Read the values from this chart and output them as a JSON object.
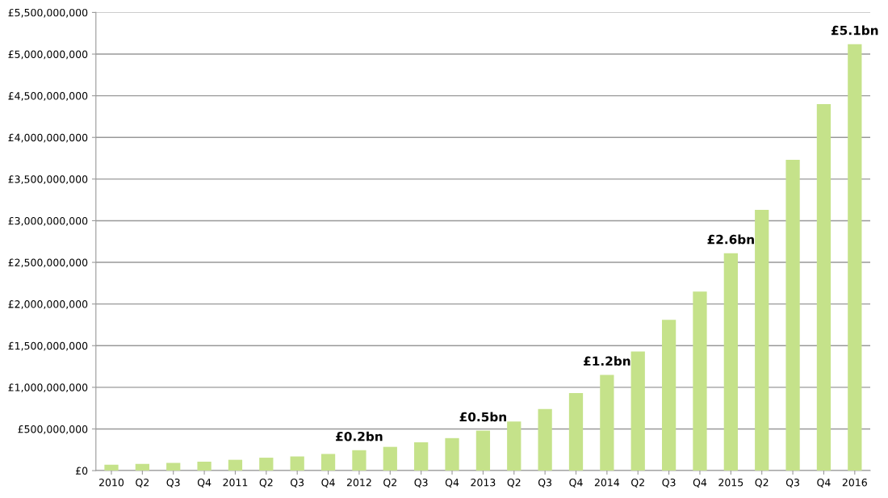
{
  "chart_data": {
    "type": "bar",
    "categories": [
      "2010",
      "Q2",
      "Q3",
      "Q4",
      "2011",
      "Q2",
      "Q3",
      "Q4",
      "2012",
      "Q2",
      "Q3",
      "Q4",
      "2013",
      "Q2",
      "Q3",
      "Q4",
      "2014",
      "Q2",
      "Q3",
      "Q4",
      "2015",
      "Q2",
      "Q3",
      "Q4",
      "2016"
    ],
    "values": [
      70000000,
      80000000,
      93000000,
      107000000,
      130000000,
      155000000,
      170000000,
      200000000,
      245000000,
      285000000,
      340000000,
      390000000,
      480000000,
      590000000,
      740000000,
      930000000,
      1150000000,
      1430000000,
      1810000000,
      2150000000,
      2610000000,
      3130000000,
      3730000000,
      4400000000,
      5120000000
    ],
    "color": "#c5e28a",
    "ylim": [
      0,
      5500000000
    ],
    "yticks": [
      {
        "value": 0,
        "label": "£0"
      },
      {
        "value": 500000000,
        "label": "£500,000,000"
      },
      {
        "value": 1000000000,
        "label": "£1,000,000,000"
      },
      {
        "value": 1500000000,
        "label": "£1,500,000,000"
      },
      {
        "value": 2000000000,
        "label": "£2,000,000,000"
      },
      {
        "value": 2500000000,
        "label": "£2,500,000,000"
      },
      {
        "value": 3000000000,
        "label": "£3,000,000,000"
      },
      {
        "value": 3500000000,
        "label": "£3,500,000,000"
      },
      {
        "value": 4000000000,
        "label": "£4,000,000,000"
      },
      {
        "value": 4500000000,
        "label": "£4,500,000,000"
      },
      {
        "value": 5000000000,
        "label": "£5,000,000,000"
      },
      {
        "value": 5500000000,
        "label": "£5,500,000,000"
      }
    ],
    "grid": "y",
    "annotations": [
      {
        "text": "£0.2bn",
        "x": "2012",
        "y": 245000000
      },
      {
        "text": "£0.5bn",
        "x": "2013",
        "y": 480000000
      },
      {
        "text": "£1.2bn",
        "x": "2014",
        "y": 1150000000
      },
      {
        "text": "£2.6bn",
        "x": "2015",
        "y": 2610000000
      },
      {
        "text": "£5.1bn",
        "x": "2016",
        "y": 5120000000
      }
    ]
  }
}
